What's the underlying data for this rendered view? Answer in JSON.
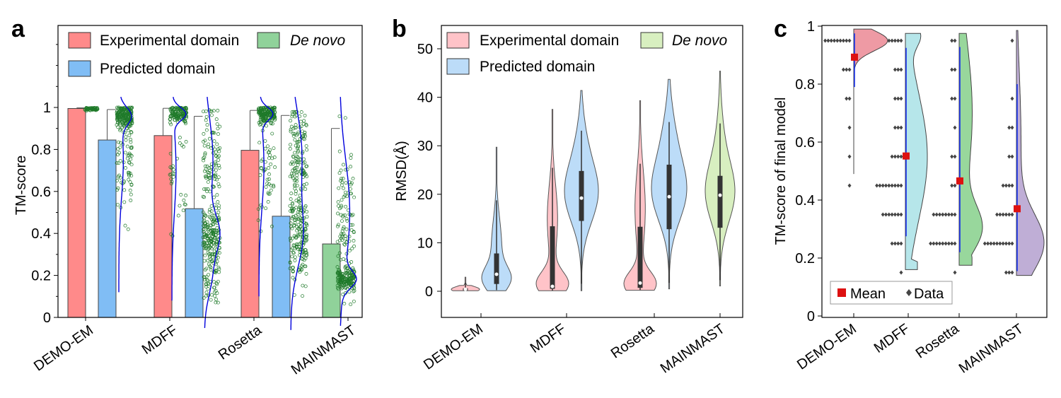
{
  "colors": {
    "experimental": "#ff8a8a",
    "predicted": "#80bdf5",
    "denovo": "#90d29a",
    "scatter": "#1f7a2a",
    "kde": "#0000dd",
    "violin_exp": "#ffc3c8",
    "violin_pred": "#bcdcf8",
    "violin_denovo": "#d8efc0",
    "c_demo": "#ee9aa4",
    "c_mdff": "#b6e6ea",
    "c_rosetta": "#98d79c",
    "c_mainmast": "#bfaed6",
    "mean": "#dd1111",
    "data_point": "#444444",
    "ci_line": "#1a33ee"
  },
  "chart_data": [
    {
      "panel": "a",
      "type": "bar",
      "ylabel": "TM-score",
      "ylim": [
        0,
        1.05
      ],
      "yticks": [
        "0",
        "0.2",
        "0.4",
        "0.6",
        "0.8",
        "1"
      ],
      "categories": [
        "DEMO-EM",
        "MDFF",
        "Rosetta",
        "MAINMAST"
      ],
      "legend": {
        "experimental": "Experimental domain",
        "predicted": "Predicted domain",
        "denovo": "De novo"
      },
      "series": [
        {
          "name": "Experimental domain",
          "values": [
            0.995,
            0.866,
            0.796,
            null
          ],
          "errors": [
            0.003,
            0.13,
            0.19,
            null
          ]
        },
        {
          "name": "Predicted domain",
          "values": [
            0.845,
            0.518,
            0.482,
            null
          ],
          "errors": [
            0.145,
            0.44,
            0.48,
            null
          ]
        },
        {
          "name": "De novo",
          "values": [
            null,
            null,
            null,
            0.35
          ],
          "errors": [
            null,
            null,
            null,
            0.55
          ]
        }
      ]
    },
    {
      "panel": "b",
      "type": "violin",
      "ylabel": "RMSD(Å)",
      "ylim": [
        -4,
        55
      ],
      "yticks": [
        "0",
        "10",
        "20",
        "30",
        "40",
        "50"
      ],
      "categories": [
        "DEMO-EM",
        "MDFF",
        "Rosetta",
        "MAINMAST"
      ],
      "legend": {
        "experimental": "Experimental domain",
        "predicted": "Predicted domain",
        "denovo": "De novo"
      },
      "groups": [
        {
          "category": "DEMO-EM",
          "kind": "experimental",
          "min": 0.1,
          "q1": 0.2,
          "median": 0.4,
          "q3": 0.6,
          "max": 2.9
        },
        {
          "category": "DEMO-EM",
          "kind": "predicted",
          "min": 0.1,
          "q1": 1.5,
          "median": 3.5,
          "q3": 7.8,
          "max": 29.7
        },
        {
          "category": "MDFF",
          "kind": "experimental",
          "min": 0.1,
          "q1": 0.5,
          "median": 1.0,
          "q3": 13.4,
          "max": 37.5
        },
        {
          "category": "MDFF",
          "kind": "predicted",
          "min": 0.1,
          "q1": 14.5,
          "median": 19.2,
          "q3": 24.8,
          "max": 41.4
        },
        {
          "category": "Rosetta",
          "kind": "experimental",
          "min": 0.2,
          "q1": 0.7,
          "median": 1.7,
          "q3": 13.3,
          "max": 39.3
        },
        {
          "category": "Rosetta",
          "kind": "predicted",
          "min": 0.5,
          "q1": 12.8,
          "median": 19.5,
          "q3": 26.1,
          "max": 43.7
        },
        {
          "category": "MAINMAST",
          "kind": "denovo",
          "min": 1.1,
          "q1": 13.1,
          "median": 19.8,
          "q3": 23.8,
          "max": 45.4
        }
      ]
    },
    {
      "panel": "c",
      "type": "scatter",
      "ylabel": "TM-score of final model",
      "ylim": [
        0,
        1
      ],
      "yticks": [
        "0",
        "0.2",
        "0.4",
        "0.6",
        "0.8",
        "1"
      ],
      "categories": [
        "DEMO-EM",
        "MDFF",
        "Rosetta",
        "MAINMAST"
      ],
      "legend": {
        "mean": "Mean",
        "data": "Data"
      },
      "groups": [
        {
          "category": "DEMO-EM",
          "mean": 0.893,
          "ci": [
            0.79,
            0.975
          ]
        },
        {
          "category": "MDFF",
          "mean": 0.552,
          "ci": [
            0.275,
            0.925
          ]
        },
        {
          "category": "Rosetta",
          "mean": 0.466,
          "ci": [
            0.22,
            0.928
          ]
        },
        {
          "category": "MAINMAST",
          "mean": 0.37,
          "ci": [
            0.155,
            0.8
          ]
        }
      ]
    }
  ]
}
